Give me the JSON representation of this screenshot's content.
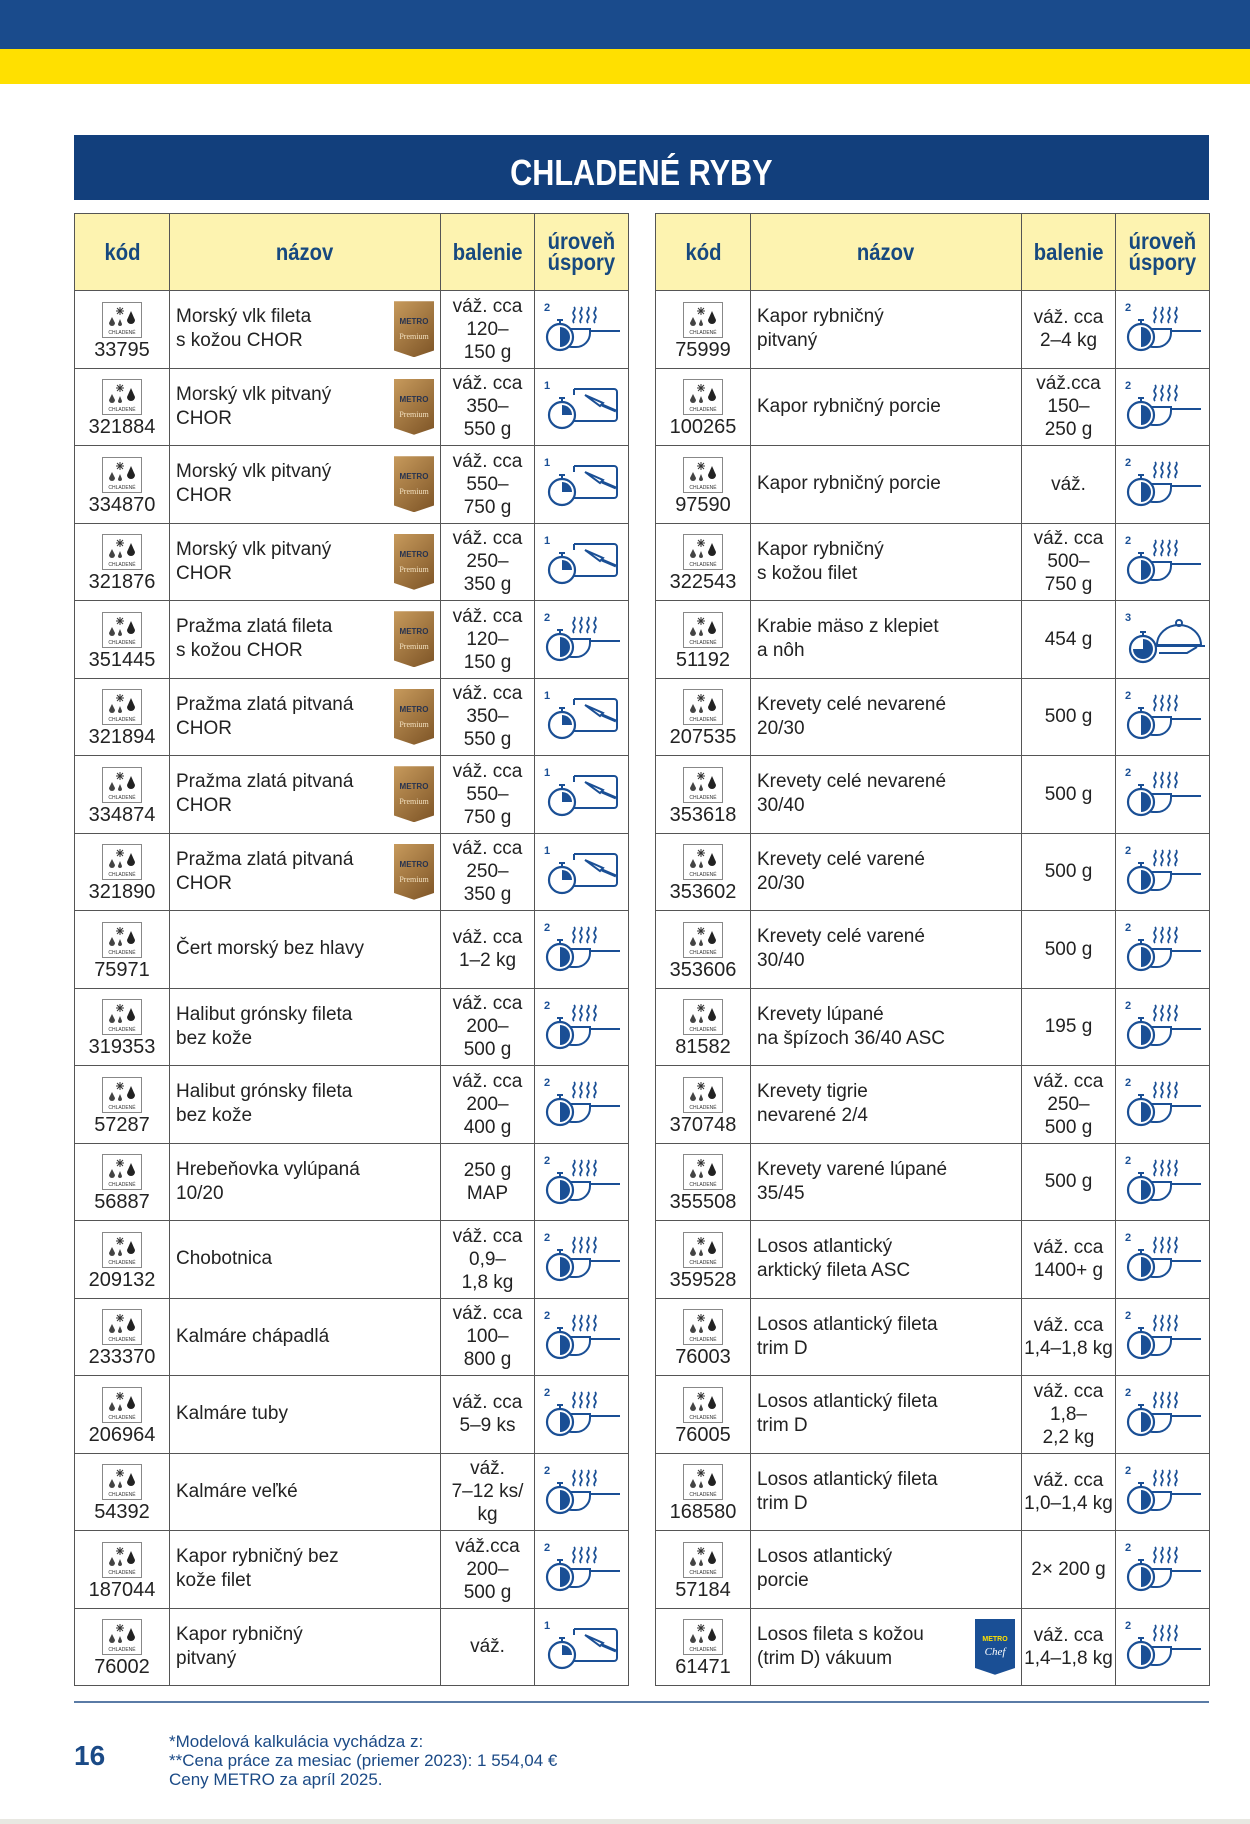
{
  "title": "CHLADENÉ RYBY",
  "headers": {
    "code": "kód",
    "name": "názov",
    "pack": "balenie",
    "level": [
      "úroveň",
      "úspory"
    ]
  },
  "chilled_label": "CHLADENÉ",
  "badges": {
    "premium": [
      "METRO",
      "Premium"
    ],
    "chef": [
      "METRO",
      "Chef"
    ]
  },
  "colors": {
    "brand_blue": "#123f7c",
    "brand_yellow": "#ffe000",
    "header_bg": "#fdf3b0",
    "icon_blue": "#1a4f95"
  },
  "level_icons": {
    "1": "knife-cutting-board-timer-icon",
    "2": "pan-cooking-timer-icon",
    "3": "serving-cloche-timer-icon"
  },
  "left_rows": [
    {
      "code": "33795",
      "name": [
        "Morský vlk fileta",
        "s kožou CHOR"
      ],
      "badge": "premium",
      "pack": [
        "váž. cca",
        "120–",
        "150 g"
      ],
      "level": 2
    },
    {
      "code": "321884",
      "name": [
        "Morský vlk pitvaný",
        "CHOR"
      ],
      "badge": "premium",
      "pack": [
        "váž. cca",
        "350–",
        "550 g"
      ],
      "level": 1
    },
    {
      "code": "334870",
      "name": [
        "Morský vlk pitvaný",
        "CHOR"
      ],
      "badge": "premium",
      "pack": [
        "váž. cca",
        "550–",
        "750 g"
      ],
      "level": 1
    },
    {
      "code": "321876",
      "name": [
        "Morský vlk pitvaný",
        "CHOR"
      ],
      "badge": "premium",
      "pack": [
        "váž. cca",
        "250–",
        "350 g"
      ],
      "level": 1
    },
    {
      "code": "351445",
      "name": [
        "Pražma zlatá fileta",
        "s kožou CHOR"
      ],
      "badge": "premium",
      "pack": [
        "váž. cca",
        "120–",
        "150 g"
      ],
      "level": 2
    },
    {
      "code": "321894",
      "name": [
        "Pražma zlatá pitvaná",
        "CHOR"
      ],
      "badge": "premium",
      "pack": [
        "váž. cca",
        "350–",
        "550 g"
      ],
      "level": 1
    },
    {
      "code": "334874",
      "name": [
        "Pražma zlatá pitvaná",
        "CHOR"
      ],
      "badge": "premium",
      "pack": [
        "váž. cca",
        "550–",
        "750 g"
      ],
      "level": 1
    },
    {
      "code": "321890",
      "name": [
        "Pražma zlatá pitvaná",
        "CHOR"
      ],
      "badge": "premium",
      "pack": [
        "váž. cca",
        "250–",
        "350 g"
      ],
      "level": 1
    },
    {
      "code": "75971",
      "name": [
        "Čert morský bez hlavy"
      ],
      "pack": [
        "váž. cca",
        "1–2 kg"
      ],
      "level": 2
    },
    {
      "code": "319353",
      "name": [
        "Halibut grónsky fileta",
        "bez kože"
      ],
      "pack": [
        "váž. cca",
        "200–",
        "500 g"
      ],
      "level": 2
    },
    {
      "code": "57287",
      "name": [
        "Halibut grónsky fileta",
        "bez kože"
      ],
      "pack": [
        "váž. cca",
        "200–",
        "400 g"
      ],
      "level": 2
    },
    {
      "code": "56887",
      "name": [
        "Hrebeňovka vylúpaná",
        "10/20"
      ],
      "pack": [
        "250 g",
        "MAP"
      ],
      "level": 2
    },
    {
      "code": "209132",
      "name": [
        "Chobotnica"
      ],
      "pack": [
        "váž. cca",
        "0,9–",
        "1,8 kg"
      ],
      "level": 2
    },
    {
      "code": "233370",
      "name": [
        "Kalmáre chápadlá"
      ],
      "pack": [
        "váž. cca",
        "100–",
        "800 g"
      ],
      "level": 2
    },
    {
      "code": "206964",
      "name": [
        "Kalmáre tuby"
      ],
      "pack": [
        "váž. cca",
        "5–9 ks"
      ],
      "level": 2
    },
    {
      "code": "54392",
      "name": [
        "Kalmáre veľké"
      ],
      "pack": [
        "váž.",
        "7–12 ks/",
        "kg"
      ],
      "level": 2
    },
    {
      "code": "187044",
      "name": [
        "Kapor rybničný bez",
        "kože filet"
      ],
      "pack": [
        "váž.cca",
        "200–",
        "500 g"
      ],
      "level": 2
    },
    {
      "code": "76002",
      "name": [
        "Kapor rybničný",
        "pitvaný"
      ],
      "pack": [
        "váž."
      ],
      "level": 1
    }
  ],
  "right_rows": [
    {
      "code": "75999",
      "name": [
        "Kapor rybničný",
        "pitvaný"
      ],
      "pack": [
        "váž. cca",
        "2–4 kg"
      ],
      "level": 2
    },
    {
      "code": "100265",
      "name": [
        "Kapor rybničný porcie"
      ],
      "pack": [
        "váž.cca",
        "150–",
        "250 g"
      ],
      "level": 2
    },
    {
      "code": "97590",
      "name": [
        "Kapor rybničný porcie"
      ],
      "pack": [
        "váž."
      ],
      "level": 2
    },
    {
      "code": "322543",
      "name": [
        "Kapor rybničný",
        "s kožou filet"
      ],
      "pack": [
        "váž. cca",
        "500–",
        "750 g"
      ],
      "level": 2
    },
    {
      "code": "51192",
      "name": [
        "Krabie mäso z klepiet",
        "a nôh"
      ],
      "pack": [
        "454 g"
      ],
      "level": 3
    },
    {
      "code": "207535",
      "name": [
        "Krevety celé nevarené",
        "20/30"
      ],
      "pack": [
        "500 g"
      ],
      "level": 2
    },
    {
      "code": "353618",
      "name": [
        "Krevety celé nevarené",
        "30/40"
      ],
      "pack": [
        "500 g"
      ],
      "level": 2
    },
    {
      "code": "353602",
      "name": [
        "Krevety celé varené",
        "20/30"
      ],
      "pack": [
        "500 g"
      ],
      "level": 2
    },
    {
      "code": "353606",
      "name": [
        "Krevety celé varené",
        "30/40"
      ],
      "pack": [
        "500 g"
      ],
      "level": 2
    },
    {
      "code": "81582",
      "name": [
        "Krevety lúpané",
        "na špízoch 36/40 ASC"
      ],
      "pack": [
        "195 g"
      ],
      "level": 2
    },
    {
      "code": "370748",
      "name": [
        "Krevety tigrie",
        "nevarené 2/4"
      ],
      "pack": [
        "váž. cca",
        "250–",
        "500 g"
      ],
      "level": 2
    },
    {
      "code": "355508",
      "name": [
        "Krevety varené lúpané",
        "35/45"
      ],
      "pack": [
        "500 g"
      ],
      "level": 2
    },
    {
      "code": "359528",
      "name": [
        "Losos atlantický",
        "arktický fileta ASC"
      ],
      "pack": [
        "váž. cca",
        "1400+ g"
      ],
      "level": 2
    },
    {
      "code": "76003",
      "name": [
        "Losos atlantický fileta",
        "trim D"
      ],
      "pack": [
        "váž. cca",
        "1,4–1,8 kg"
      ],
      "level": 2
    },
    {
      "code": "76005",
      "name": [
        "Losos atlantický fileta",
        "trim D"
      ],
      "pack": [
        "váž. cca",
        "1,8–",
        "2,2 kg"
      ],
      "level": 2
    },
    {
      "code": "168580",
      "name": [
        "Losos atlantický fileta",
        "trim D"
      ],
      "pack": [
        "váž. cca",
        "1,0–1,4 kg"
      ],
      "level": 2
    },
    {
      "code": "57184",
      "name": [
        "Losos atlantický",
        "porcie"
      ],
      "pack": [
        "2× 200 g"
      ],
      "level": 2
    },
    {
      "code": "61471",
      "name": [
        "Losos fileta s kožou",
        "(trim D) vákuum"
      ],
      "badge": "chef",
      "pack": [
        "váž. cca",
        "1,4–1,8 kg"
      ],
      "level": 2
    }
  ],
  "footer": {
    "page_number": "16",
    "notes": [
      "*Modelová kalkulácia vychádza z:",
      "**Cena práce za mesiac (priemer 2023): 1 554,04 €",
      "Ceny METRO za apríl 2025."
    ]
  }
}
